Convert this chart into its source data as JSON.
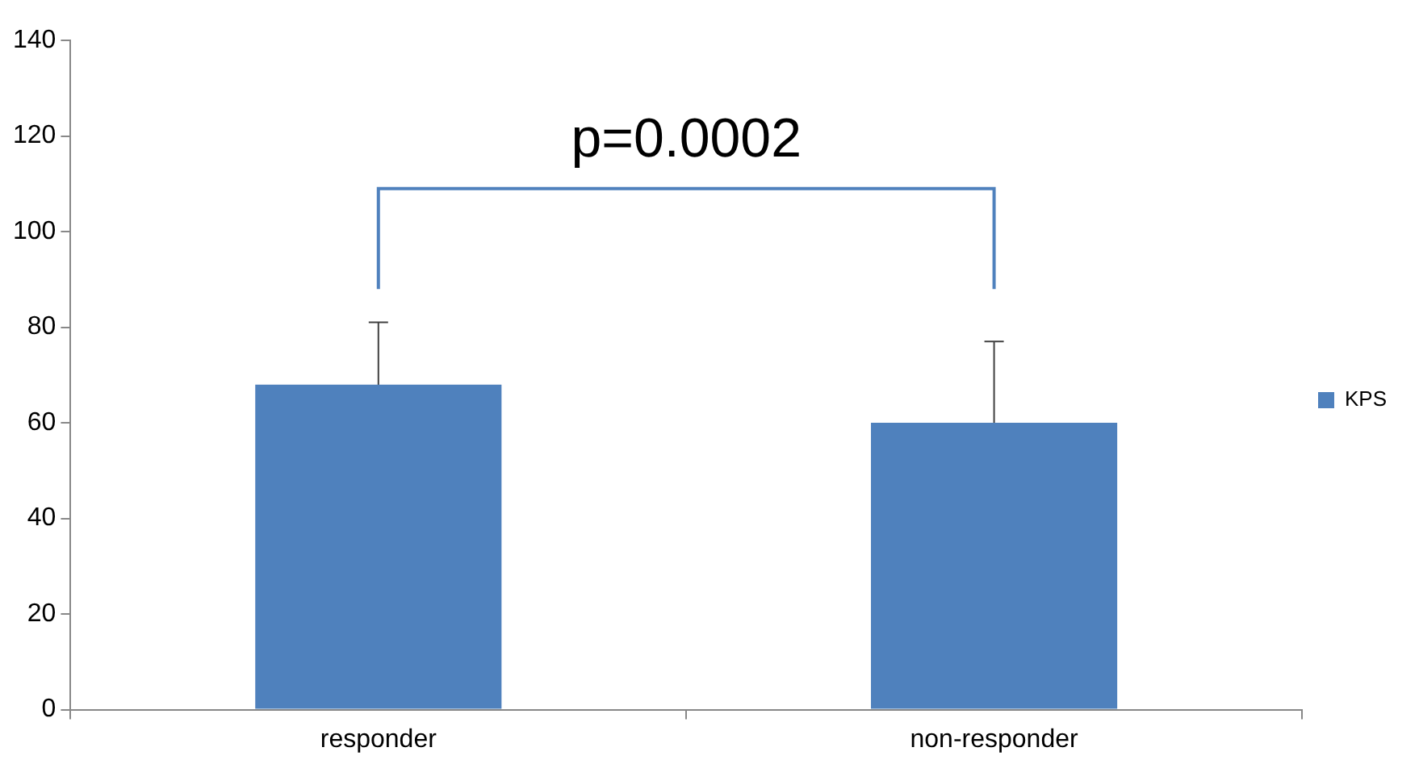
{
  "chart_data": {
    "type": "bar",
    "categories": [
      "responder",
      "non-responder"
    ],
    "series": [
      {
        "name": "KPS",
        "color": "#4f81bd",
        "values": [
          68,
          60
        ],
        "errors": [
          13,
          17
        ]
      }
    ],
    "ylim": [
      0,
      140
    ],
    "yticks": [
      0,
      20,
      40,
      60,
      80,
      100,
      120,
      140
    ],
    "grid": false,
    "legend": "right",
    "annotations": [
      "p=0.0002"
    ]
  }
}
